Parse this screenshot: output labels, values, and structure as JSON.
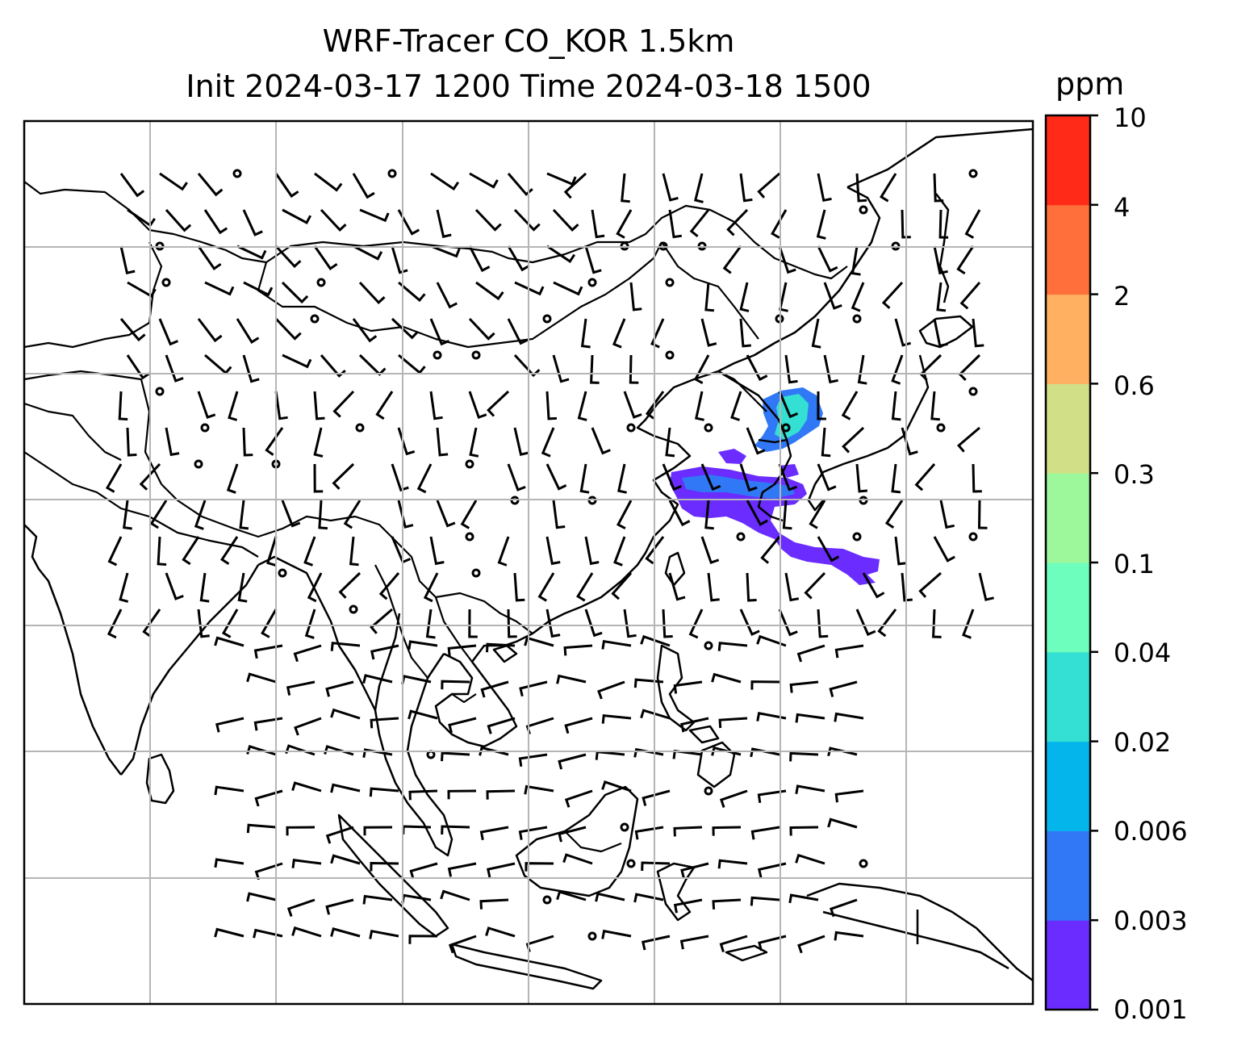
{
  "title": {
    "line1": "WRF-Tracer CO_KOR 1.5km",
    "line2": "Init 2024-03-17 1200 Time 2024-03-18 1500"
  },
  "colorbar": {
    "unit": "ppm",
    "levels": [
      "0.001",
      "0.003",
      "0.006",
      "0.02",
      "0.04",
      "0.1",
      "0.3",
      "0.6",
      "2",
      "4",
      "10"
    ],
    "colors": [
      "#6a2cff",
      "#3178f6",
      "#04b5ec",
      "#33e0d3",
      "#6dfdbc",
      "#9df89c",
      "#d1e086",
      "#ffb061",
      "#ff6f3b",
      "#ff2a17"
    ]
  },
  "map": {
    "gridlines": true,
    "plume_color_main": "#6a2cff",
    "plume_color_secondary": "#3178f6",
    "plume_color_core": "#33e0d3"
  }
}
